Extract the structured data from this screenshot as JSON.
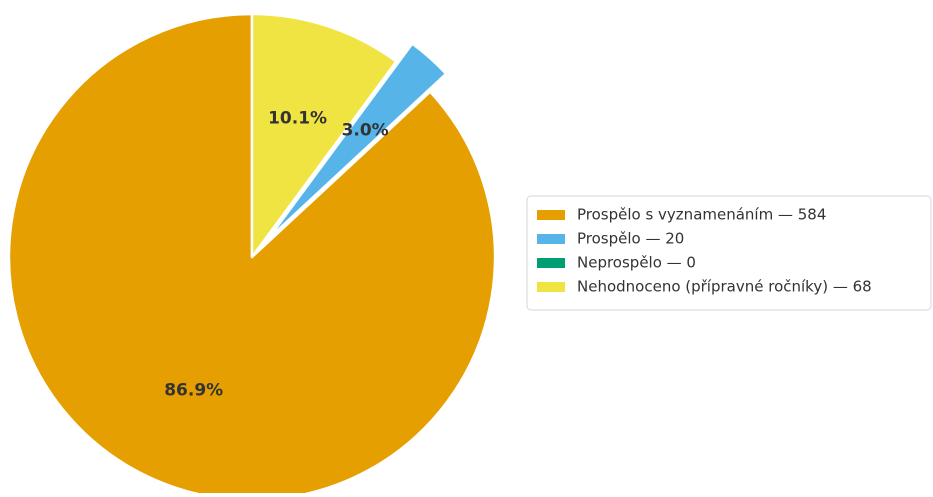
{
  "chart_data": {
    "type": "pie",
    "start_angle": "top, counter-clockwise",
    "series": [
      {
        "name": "Prospělo s vyznamenáním",
        "legend_label": "Prospělo s vyznamenáním — 584",
        "value": 584,
        "percent_label": "86.9%",
        "color": "#E69F00",
        "exploded": false
      },
      {
        "name": "Prospělo",
        "legend_label": "Prospělo — 20",
        "value": 20,
        "percent_label": "3.0%",
        "color": "#56B4E9",
        "exploded": true
      },
      {
        "name": "Neprospělo",
        "legend_label": "Neprospělo — 0",
        "value": 0,
        "percent_label": "",
        "color": "#009E73",
        "exploded": false
      },
      {
        "name": "Nehodnoceno (přípravné ročníky)",
        "legend_label": "Nehodnoceno (přípravné ročníky) — 68",
        "value": 68,
        "percent_label": "10.1%",
        "color": "#F0E442",
        "exploded": false
      }
    ],
    "legend_position": "right"
  }
}
